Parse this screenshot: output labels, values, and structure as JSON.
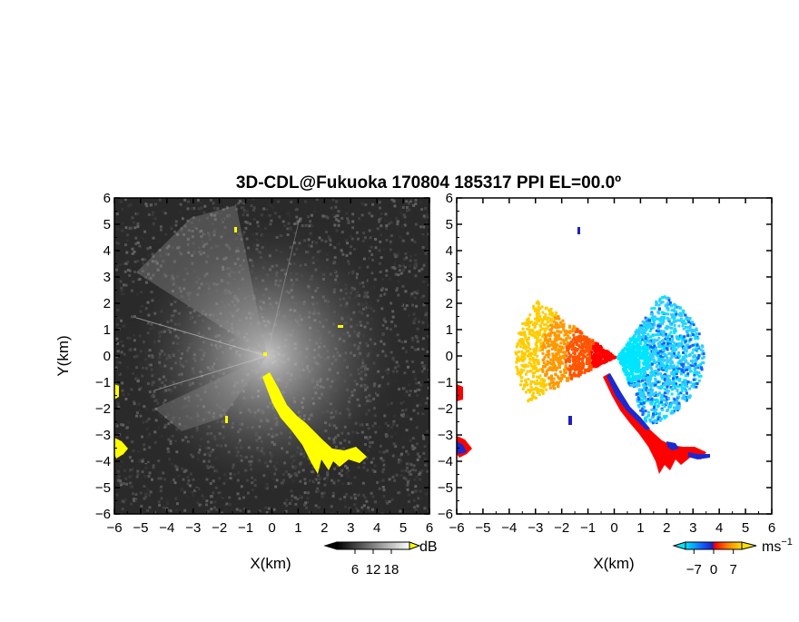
{
  "title": "3D-CDL@Fukuoka 170804 185317 PPI EL=00.0º",
  "chart_data": [
    {
      "type": "heatmap",
      "panel": "reflectivity",
      "xlabel": "X(km)",
      "ylabel": "Y(km)",
      "xlim": [
        -6,
        6
      ],
      "ylim": [
        -6,
        6
      ],
      "xticks": [
        "-6",
        "-5",
        "-4",
        "-3",
        "-2",
        "-1",
        "0",
        "1",
        "2",
        "3",
        "4",
        "5",
        "6"
      ],
      "yticks": [
        "-6",
        "-5",
        "-4",
        "-3",
        "-2",
        "-1",
        "0",
        "1",
        "2",
        "3",
        "4",
        "5",
        "6"
      ],
      "colorbar": {
        "unit": "dB",
        "ticks": [
          "6",
          "12",
          "18"
        ],
        "tick_values": [
          6,
          12,
          18
        ],
        "range": [
          0,
          24
        ],
        "colors": [
          "#000000",
          "#ffffff"
        ]
      },
      "background_color": "#2a2a2a",
      "highlight_color": "#ffff00"
    },
    {
      "type": "heatmap",
      "panel": "doppler_velocity",
      "xlabel": "X(km)",
      "ylabel": "",
      "xlim": [
        -6,
        6
      ],
      "ylim": [
        -6,
        6
      ],
      "xticks": [
        "-6",
        "-5",
        "-4",
        "-3",
        "-2",
        "-1",
        "0",
        "1",
        "2",
        "3",
        "4",
        "5",
        "6"
      ],
      "yticks": [
        "-6",
        "-5",
        "-4",
        "-3",
        "-2",
        "-1",
        "0",
        "1",
        "2",
        "3",
        "4",
        "5",
        "6"
      ],
      "colorbar": {
        "unit": "ms",
        "unit_exp": "−1",
        "ticks": [
          "−7",
          "0",
          "7"
        ],
        "tick_values": [
          -7,
          0,
          7
        ],
        "range": [
          -10,
          10
        ],
        "colors": [
          "#00e5ff",
          "#1060ff",
          "#2020c0",
          "#ff0000",
          "#ff8000",
          "#ffe000"
        ]
      }
    }
  ],
  "colors": {
    "approaching": [
      "#00e5ff",
      "#33ccff",
      "#1060ff",
      "#2020c0"
    ],
    "receding": [
      "#ff0000",
      "#ff5500",
      "#ff9900",
      "#ffcc00"
    ]
  }
}
